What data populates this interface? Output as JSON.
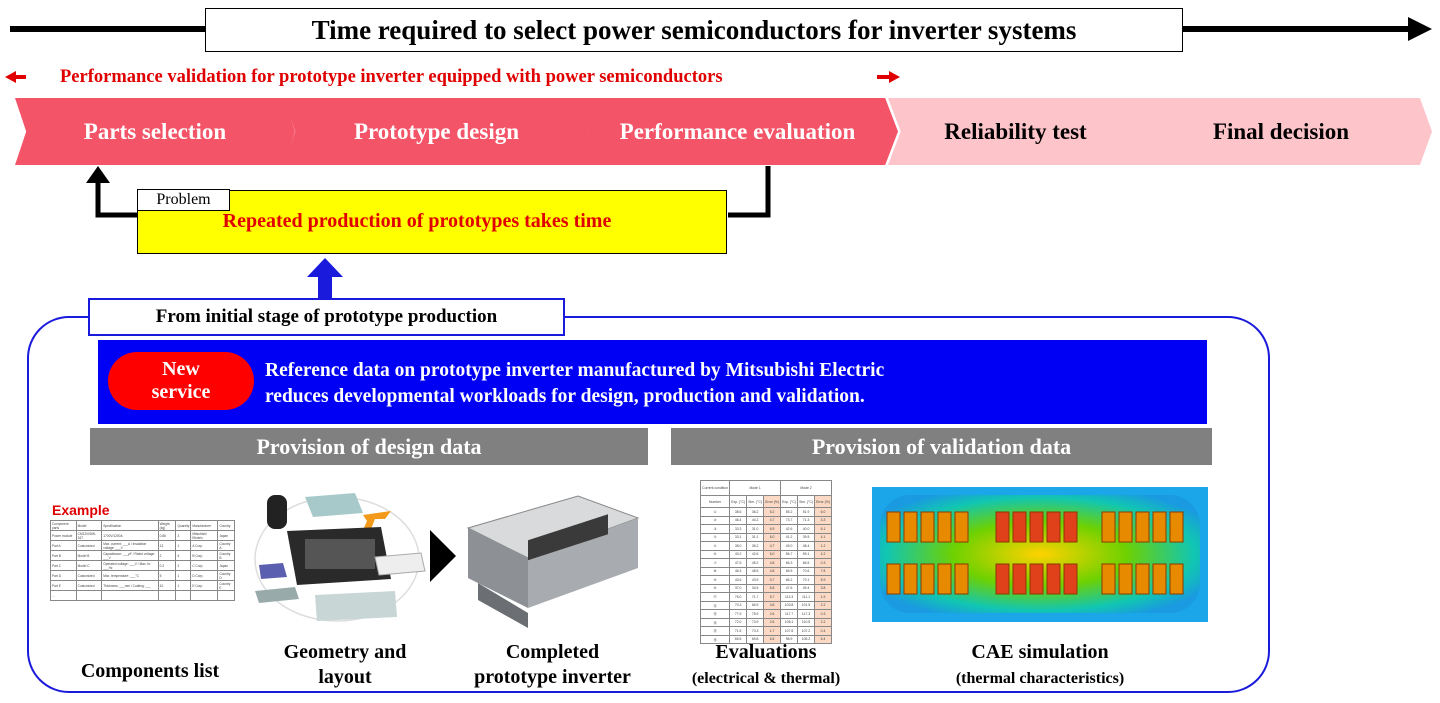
{
  "header": {
    "title": "Time required to select power semiconductors for inverter systems",
    "subtitle": "Performance validation for prototype inverter equipped with power semiconductors"
  },
  "stages": [
    {
      "label": "Parts selection",
      "color": "#f45467"
    },
    {
      "label": "Prototype design",
      "color": "#f45467"
    },
    {
      "label": "Performance evaluation",
      "color": "#f45467"
    },
    {
      "label": "Reliability test",
      "color": "#fdc4ca"
    },
    {
      "label": "Final decision",
      "color": "#fdc4ca"
    }
  ],
  "problem": {
    "label": "Problem",
    "text": "Repeated production of prototypes takes time"
  },
  "solution": {
    "stage_label": "From initial stage of prototype production",
    "badge": [
      "New",
      "service"
    ],
    "description": [
      "Reference data on prototype inverter manufactured by Mitsubishi Electric",
      "reduces developmental workloads for design, production and validation."
    ],
    "design_header": "Provision of design data",
    "validation_header": "Provision of validation data"
  },
  "items": {
    "components": {
      "example_label": "Example",
      "caption": "Components list",
      "headers": [
        "Component parts",
        "Model",
        "Specification",
        "Weight (kg)",
        "Quantity",
        "Manufacturer",
        "Country"
      ],
      "rows": [
        [
          "Power module",
          "CM1200DW-34T",
          "1700V/1200A",
          "0.86",
          "3",
          "Mitsubishi Electric",
          "Japan"
        ],
        [
          "Part A",
          "Customized",
          "Max. current: ___A / Insulation voltage: ___V",
          "13",
          "1",
          "A Corp.",
          "Country A"
        ],
        [
          "Part B",
          "Model B",
          "Capacitance: ___μF / Rated voltage: ___V",
          "2",
          "6",
          "B Corp.",
          "Country B"
        ],
        [
          "Part C",
          "Model C",
          "Operated voltage: ___V / Max. fs: ___Hz",
          "0.2",
          "2",
          "C Corp.",
          "Japan"
        ],
        [
          "Part D",
          "Customized",
          "Max. temperature: ___°C",
          "5",
          "1",
          "D Corp.",
          "Country D"
        ],
        [
          "Part E",
          "Customized",
          "Thickness: ___mm / Coating: ___",
          "10",
          "1",
          "E Corp.",
          "Country E"
        ],
        [
          "...",
          "",
          "",
          "",
          "",
          "",
          ""
        ]
      ]
    },
    "geometry": {
      "caption": [
        "Geometry and",
        "layout"
      ]
    },
    "prototype": {
      "caption": [
        "Completed",
        "prototype inverter"
      ]
    },
    "evaluations": {
      "caption": "Evaluations",
      "subcaption": "(electrical & thermal)",
      "headers": [
        "Current condition",
        "Mode 1",
        "Mode 2"
      ],
      "subheaders": [
        "Number",
        "Exp. (°C)",
        "Sim. (°C)",
        "Error (%)",
        "Exp. (°C)",
        "Sim. (°C)",
        "Error (%)"
      ],
      "rows": [
        [
          "①",
          "38.6",
          "36.2",
          "6.2",
          "55.2",
          "51.9",
          "6.0"
        ],
        [
          "②",
          "46.4",
          "44.2",
          "4.7",
          "73.7",
          "71.3",
          "3.3"
        ],
        [
          "③",
          "33.3",
          "31.0",
          "6.9",
          "42.6",
          "40.0",
          "6.1"
        ],
        [
          "④",
          "33.1",
          "31.1",
          "6.0",
          "41.2",
          "39.5",
          "4.1"
        ],
        [
          "⑤",
          "38.0",
          "36.2",
          "4.7",
          "49.0",
          "48.4",
          "1.2"
        ],
        [
          "⑥",
          "40.2",
          "42.6",
          "6.0",
          "56.7",
          "59.1",
          "4.2"
        ],
        [
          "⑦",
          "47.5",
          "45.2",
          "4.8",
          "66.3",
          "66.5",
          "0.3"
        ],
        [
          "⑧",
          "46.3",
          "48.5",
          "4.8",
          "65.5",
          "70.6",
          "7.8"
        ],
        [
          "⑨",
          "43.6",
          "43.9",
          "0.7",
          "66.2",
          "70.1",
          "5.9"
        ],
        [
          "⑩",
          "37.0",
          "34.5",
          "6.8",
          "47.6",
          "49.4",
          "3.8"
        ],
        [
          "⑪",
          "76.0",
          "71.7",
          "5.7",
          "113.3",
          "111.1",
          "1.9"
        ],
        [
          "⑫",
          "70.3",
          "66.9",
          "4.8",
          "103.8",
          "101.5",
          "2.2"
        ],
        [
          "⑬",
          "77.9",
          "75.9",
          "2.6",
          "117.7",
          "117.3",
          "0.3"
        ],
        [
          "⑭",
          "72.0",
          "73.9",
          "2.6",
          "108.1",
          "110.5",
          "2.2"
        ],
        [
          "⑮",
          "71.5",
          "70.3",
          "1.7",
          "107.6",
          "107.2",
          "0.4"
        ],
        [
          "⑯",
          "65.5",
          "69.8",
          "6.6",
          "98.9",
          "105.2",
          "6.4"
        ]
      ]
    },
    "cae": {
      "caption": "CAE simulation",
      "subcaption": "(thermal characteristics)"
    }
  },
  "colors": {
    "accent_red": "#e00000",
    "blue": "#0000f5",
    "problem_yellow": "#ffff00",
    "gray": "#808080"
  }
}
